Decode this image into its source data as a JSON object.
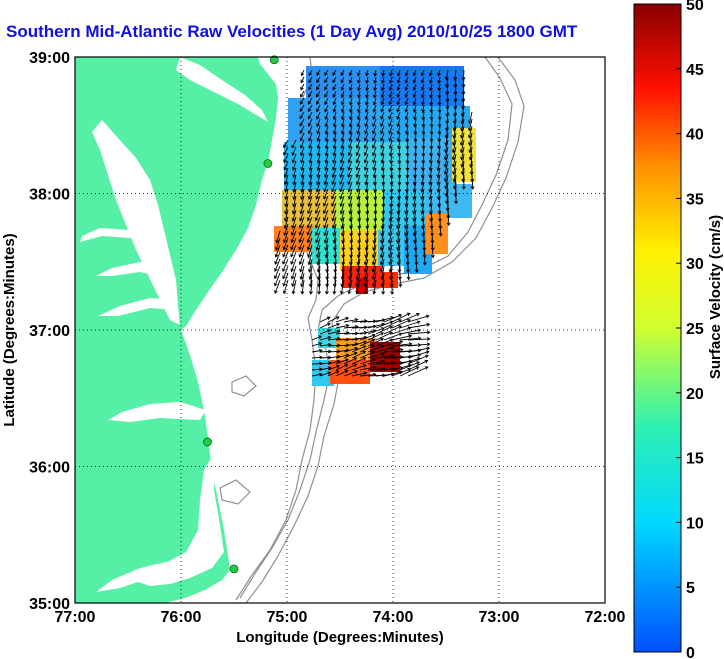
{
  "chart_data": {
    "type": "heatmap",
    "title": "Southern Mid-Atlantic Raw Velocities (1 Day Avg) 2010/10/25 1800 GMT",
    "xlabel": "Longitude (Degrees:Minutes)",
    "ylabel": "Latitude (Degrees:Minutes)",
    "x_ticks": [
      "77:00",
      "76:00",
      "75:00",
      "74:00",
      "73:00",
      "72:00"
    ],
    "y_ticks": [
      "39:00",
      "38:00",
      "37:00",
      "36:00",
      "35:00"
    ],
    "xlim": [
      -77,
      -72
    ],
    "ylim": [
      35,
      39
    ],
    "grid": true,
    "colorbar": {
      "label": "Surface Velocity (cm/s)",
      "range": [
        0,
        50
      ],
      "ticks": [
        "0",
        "5",
        "10",
        "15",
        "20",
        "25",
        "30",
        "35",
        "40",
        "45",
        "50"
      ]
    },
    "colors": {
      "land": "#55f0a6",
      "title": "#1010e0",
      "station": "#22cc44",
      "contour": "#909090"
    },
    "stations": [
      {
        "lon": -75.12,
        "lat": 38.98
      },
      {
        "lon": -75.18,
        "lat": 38.22
      },
      {
        "lon": -75.75,
        "lat": 36.18
      },
      {
        "lon": -75.5,
        "lat": 35.25
      }
    ]
  }
}
